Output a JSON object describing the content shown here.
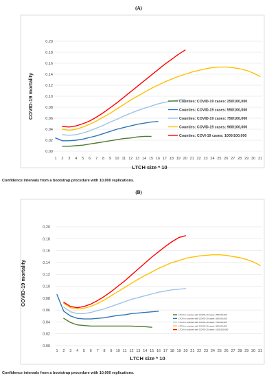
{
  "chart_data": [
    {
      "type": "line",
      "panel_label": "(A)",
      "xlabel": "LTCH size * 10",
      "ylabel": "COVID-19 mortality",
      "ylim": [
        0,
        0.2
      ],
      "yticks": [
        "0.00",
        "0.02",
        "0.04",
        "0.06",
        "0.08",
        "0.10",
        "0.12",
        "0.14",
        "0.16",
        "0.18",
        "0.20"
      ],
      "xticks": [
        "1",
        "2",
        "3",
        "4",
        "5",
        "6",
        "7",
        "8",
        "9",
        "10",
        "11",
        "12",
        "13",
        "14",
        "15",
        "16",
        "17",
        "18",
        "19",
        "20",
        "21",
        "22",
        "23",
        "24",
        "25",
        "26",
        "27",
        "28",
        "29",
        "30",
        "31"
      ],
      "grid": "horizontal",
      "legend_position": "right",
      "note": "Confidence intervals from a bootstrap procedure with 10,000 replications.",
      "series": [
        {
          "name": "Counties: COVID-19 cases: 250/100,000",
          "color": "#4d7a2f",
          "x": [
            2,
            3,
            4,
            5,
            6,
            7,
            8,
            9,
            10,
            11,
            12,
            13,
            14,
            15
          ],
          "values": [
            0.009,
            0.009,
            0.01,
            0.011,
            0.013,
            0.015,
            0.017,
            0.019,
            0.021,
            0.023,
            0.024,
            0.026,
            0.027,
            0.027
          ]
        },
        {
          "name": "Counties: COVID-19 cases: 550/100,000",
          "color": "#2e74b5",
          "x": [
            1,
            2,
            3,
            4,
            5,
            6,
            7,
            8,
            9,
            10,
            11,
            12,
            13,
            14,
            15,
            16
          ],
          "values": [
            0.024,
            0.019,
            0.019,
            0.02,
            0.022,
            0.025,
            0.028,
            0.032,
            0.036,
            0.04,
            0.043,
            0.046,
            0.049,
            0.051,
            0.053,
            0.054
          ]
        },
        {
          "name": "Counties: COVID-19 cases: 750/100,000",
          "color": "#9dc3e6",
          "x": [
            2,
            3,
            4,
            5,
            6,
            7,
            8,
            9,
            10,
            11,
            12,
            13,
            14,
            15,
            16,
            17,
            18,
            19,
            20
          ],
          "values": [
            0.03,
            0.029,
            0.03,
            0.033,
            0.037,
            0.042,
            0.047,
            0.053,
            0.058,
            0.064,
            0.069,
            0.074,
            0.078,
            0.082,
            0.086,
            0.089,
            0.091,
            0.093,
            0.094
          ]
        },
        {
          "name": "Counties: COVID-19 cases: 900/100,000",
          "color": "#ffc000",
          "x": [
            2,
            3,
            4,
            5,
            6,
            7,
            8,
            9,
            10,
            11,
            12,
            13,
            14,
            15,
            16,
            17,
            18,
            19,
            20,
            21,
            22,
            23,
            24,
            25,
            26,
            27,
            28,
            29,
            30,
            31
          ],
          "values": [
            0.04,
            0.038,
            0.04,
            0.044,
            0.049,
            0.055,
            0.062,
            0.069,
            0.077,
            0.085,
            0.093,
            0.1,
            0.107,
            0.114,
            0.12,
            0.126,
            0.131,
            0.136,
            0.14,
            0.144,
            0.147,
            0.15,
            0.152,
            0.153,
            0.153,
            0.152,
            0.15,
            0.147,
            0.142,
            0.136
          ]
        },
        {
          "name": "Counties: COVI-19 cases: 1000/100,000",
          "color": "#ff0000",
          "x": [
            2,
            3,
            4,
            5,
            6,
            7,
            8,
            9,
            10,
            11,
            12,
            13,
            14,
            15,
            16,
            17,
            18,
            19,
            20
          ],
          "values": [
            0.045,
            0.044,
            0.046,
            0.05,
            0.055,
            0.062,
            0.07,
            0.079,
            0.088,
            0.098,
            0.108,
            0.118,
            0.128,
            0.138,
            0.148,
            0.158,
            0.167,
            0.176,
            0.184
          ]
        }
      ]
    },
    {
      "type": "line",
      "panel_label": "(B)",
      "xlabel": "LTCH size * 10",
      "ylabel": "COVID-19 mortality",
      "ylim": [
        0,
        0.2
      ],
      "yticks": [
        "0.00",
        "0.02",
        "0.04",
        "0.06",
        "0.08",
        "0.10",
        "0.12",
        "0.14",
        "0.16",
        "0.18",
        "0.20"
      ],
      "xticks": [
        "1",
        "2",
        "3",
        "4",
        "5",
        "6",
        "7",
        "8",
        "9",
        "10",
        "11",
        "12",
        "13",
        "14",
        "15",
        "16",
        "17",
        "18",
        "19",
        "20",
        "21",
        "22",
        "23",
        "24",
        "25",
        "26",
        "27",
        "28",
        "29",
        "30",
        "31"
      ],
      "grid": "horizontal",
      "legend_position": "bottom-right",
      "note": "Confidence intervals from a bootstrap procedure with 10,000 replications.",
      "series": [
        {
          "name": "LTCH in counties with COVID-19 cases: 250/100,000",
          "color": "#4d7a2f",
          "x": [
            2,
            3,
            4,
            5,
            6,
            7,
            8,
            9,
            10,
            11,
            12,
            13,
            14,
            15
          ],
          "values": [
            0.046,
            0.039,
            0.035,
            0.034,
            0.033,
            0.033,
            0.033,
            0.033,
            0.033,
            0.033,
            0.033,
            0.032,
            0.032,
            0.031
          ]
        },
        {
          "name": "LTCH in counties with COVID-19 cases: 550/100,000",
          "color": "#2e74b5",
          "x": [
            1,
            2,
            3,
            4,
            5,
            6,
            7,
            8,
            9,
            10,
            11,
            12,
            13,
            14,
            15,
            16
          ],
          "values": [
            0.086,
            0.058,
            0.05,
            0.046,
            0.045,
            0.045,
            0.046,
            0.047,
            0.049,
            0.051,
            0.052,
            0.054,
            0.055,
            0.056,
            0.057,
            0.058
          ]
        },
        {
          "name": "LTCH in counties with COVID-19 cases: 750/100,000",
          "color": "#9dc3e6",
          "x": [
            2,
            3,
            4,
            5,
            6,
            7,
            8,
            9,
            10,
            11,
            12,
            13,
            14,
            15,
            16,
            17,
            18,
            19,
            20
          ],
          "values": [
            0.065,
            0.057,
            0.054,
            0.054,
            0.056,
            0.059,
            0.062,
            0.066,
            0.07,
            0.074,
            0.078,
            0.081,
            0.084,
            0.087,
            0.09,
            0.092,
            0.094,
            0.095,
            0.096
          ]
        },
        {
          "name": "LTCH in counties with COVID-19 cases: 900/100,000",
          "color": "#ffc000",
          "x": [
            2,
            3,
            4,
            5,
            6,
            7,
            8,
            9,
            10,
            11,
            12,
            13,
            14,
            15,
            16,
            17,
            18,
            19,
            20,
            21,
            22,
            23,
            24,
            25,
            26,
            27,
            28,
            29,
            30,
            31
          ],
          "values": [
            0.071,
            0.064,
            0.062,
            0.063,
            0.066,
            0.071,
            0.077,
            0.084,
            0.091,
            0.098,
            0.105,
            0.112,
            0.118,
            0.124,
            0.13,
            0.135,
            0.14,
            0.143,
            0.147,
            0.149,
            0.151,
            0.152,
            0.153,
            0.153,
            0.152,
            0.15,
            0.148,
            0.145,
            0.141,
            0.135
          ]
        },
        {
          "name": "LTCH in counties with COVID-19 cases: 1000/100,000",
          "color": "#ff0000",
          "x": [
            2,
            3,
            4,
            5,
            6,
            7,
            8,
            9,
            10,
            11,
            12,
            13,
            14,
            15,
            16,
            17,
            18,
            19,
            20
          ],
          "values": [
            0.073,
            0.066,
            0.064,
            0.066,
            0.07,
            0.076,
            0.083,
            0.091,
            0.1,
            0.109,
            0.119,
            0.129,
            0.139,
            0.149,
            0.158,
            0.167,
            0.175,
            0.182,
            0.185
          ]
        }
      ]
    }
  ]
}
